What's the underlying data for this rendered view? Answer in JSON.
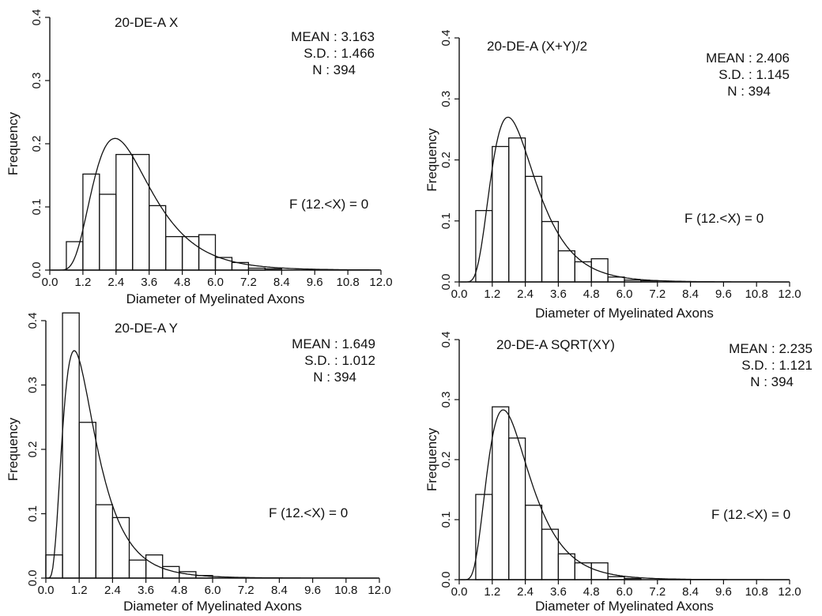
{
  "chart_data": [
    {
      "type": "bar",
      "title": "20-DE-A   X",
      "xlabel": "Diameter of Myelinated Axons",
      "ylabel": "Frequency",
      "xlim": [
        0.0,
        12.0
      ],
      "ylim": [
        0.0,
        0.4
      ],
      "x_ticks": [
        "0.0",
        "1.2",
        "2.4",
        "3.6",
        "4.8",
        "6.0",
        "7.2",
        "8.4",
        "9.6",
        "10.8",
        "12.0"
      ],
      "y_ticks": [
        "0.0",
        "0.1",
        "0.2",
        "0.3",
        "0.4"
      ],
      "bin_width": 0.6,
      "bins": [
        0.6,
        1.2,
        1.8,
        2.4,
        3.0,
        3.6,
        4.2,
        4.8,
        5.4,
        6.0,
        6.6,
        7.2,
        7.8
      ],
      "values": [
        0.045,
        0.152,
        0.12,
        0.183,
        0.183,
        0.102,
        0.053,
        0.053,
        0.056,
        0.02,
        0.012,
        0.003,
        0.002
      ],
      "fit_mean": 3.163,
      "fit_sd": 1.466,
      "stats": {
        "mean": "MEAN : 3.163",
        "sd": "S.D.    : 1.466",
        "n": "N : 394"
      },
      "note": "F (12.<X) = 0"
    },
    {
      "type": "bar",
      "title": "20-DE-A   (X+Y)/2",
      "xlabel": "Diameter of Myelinated Axons",
      "ylabel": "Frequency",
      "xlim": [
        0.0,
        12.0
      ],
      "ylim": [
        0.0,
        0.4
      ],
      "x_ticks": [
        "0.0",
        "1.2",
        "2.4",
        "3.6",
        "4.8",
        "6.0",
        "7.2",
        "8.4",
        "9.6",
        "10.8",
        "12.0"
      ],
      "y_ticks": [
        "0.0",
        "0.1",
        "0.2",
        "0.3",
        "0.4"
      ],
      "bin_width": 0.6,
      "bins": [
        0.6,
        1.2,
        1.8,
        2.4,
        3.0,
        3.6,
        4.2,
        4.8,
        5.4,
        6.0,
        6.6
      ],
      "values": [
        0.117,
        0.222,
        0.236,
        0.173,
        0.099,
        0.051,
        0.033,
        0.038,
        0.008,
        0.003,
        0.002
      ],
      "fit_mean": 2.406,
      "fit_sd": 1.145,
      "stats": {
        "mean": "MEAN : 2.406",
        "sd": "S.D.    : 1.145",
        "n": "N : 394"
      },
      "note": "F (12.<X) = 0"
    },
    {
      "type": "bar",
      "title": "20-DE-A   Y",
      "xlabel": "Diameter of Myelinated Axons",
      "ylabel": "Frequency",
      "xlim": [
        0.0,
        12.0
      ],
      "ylim": [
        0.0,
        0.4
      ],
      "x_ticks": [
        "0.0",
        "1.2",
        "2.4",
        "3.6",
        "4.8",
        "6.0",
        "7.2",
        "8.4",
        "9.6",
        "10.8",
        "12.0"
      ],
      "y_ticks": [
        "0.0",
        "0.1",
        "0.2",
        "0.3",
        "0.4"
      ],
      "bin_width": 0.6,
      "bins": [
        0.0,
        0.6,
        1.2,
        1.8,
        2.4,
        3.0,
        3.6,
        4.2,
        4.8,
        5.4
      ],
      "values": [
        0.036,
        0.412,
        0.242,
        0.114,
        0.094,
        0.028,
        0.036,
        0.018,
        0.01,
        0.004
      ],
      "fit_mean": 1.649,
      "fit_sd": 1.012,
      "stats": {
        "mean": "MEAN : 1.649",
        "sd": "S.D.    : 1.012",
        "n": "N : 394"
      },
      "note": "F (12.<X) = 0"
    },
    {
      "type": "bar",
      "title": "20-DE-A   SQRT(XY)",
      "xlabel": "Diameter of Myelinated Axons",
      "ylabel": "Frequency",
      "xlim": [
        0.0,
        12.0
      ],
      "ylim": [
        0.0,
        0.4
      ],
      "x_ticks": [
        "0.0",
        "1.2",
        "2.4",
        "3.6",
        "4.8",
        "6.0",
        "7.2",
        "8.4",
        "9.6",
        "10.8",
        "12.0"
      ],
      "y_ticks": [
        "0.0",
        "0.1",
        "0.2",
        "0.3",
        "0.4"
      ],
      "bin_width": 0.6,
      "bins": [
        0.6,
        1.2,
        1.8,
        2.4,
        3.0,
        3.6,
        4.2,
        4.8,
        5.4,
        6.0
      ],
      "values": [
        0.142,
        0.288,
        0.236,
        0.124,
        0.084,
        0.043,
        0.028,
        0.028,
        0.005,
        0.002
      ],
      "fit_mean": 2.235,
      "fit_sd": 1.121,
      "stats": {
        "mean": "MEAN : 2.235",
        "sd": "S.D.    : 1.121",
        "n": "N : 394"
      },
      "note": "F (12.<X) = 0"
    }
  ]
}
